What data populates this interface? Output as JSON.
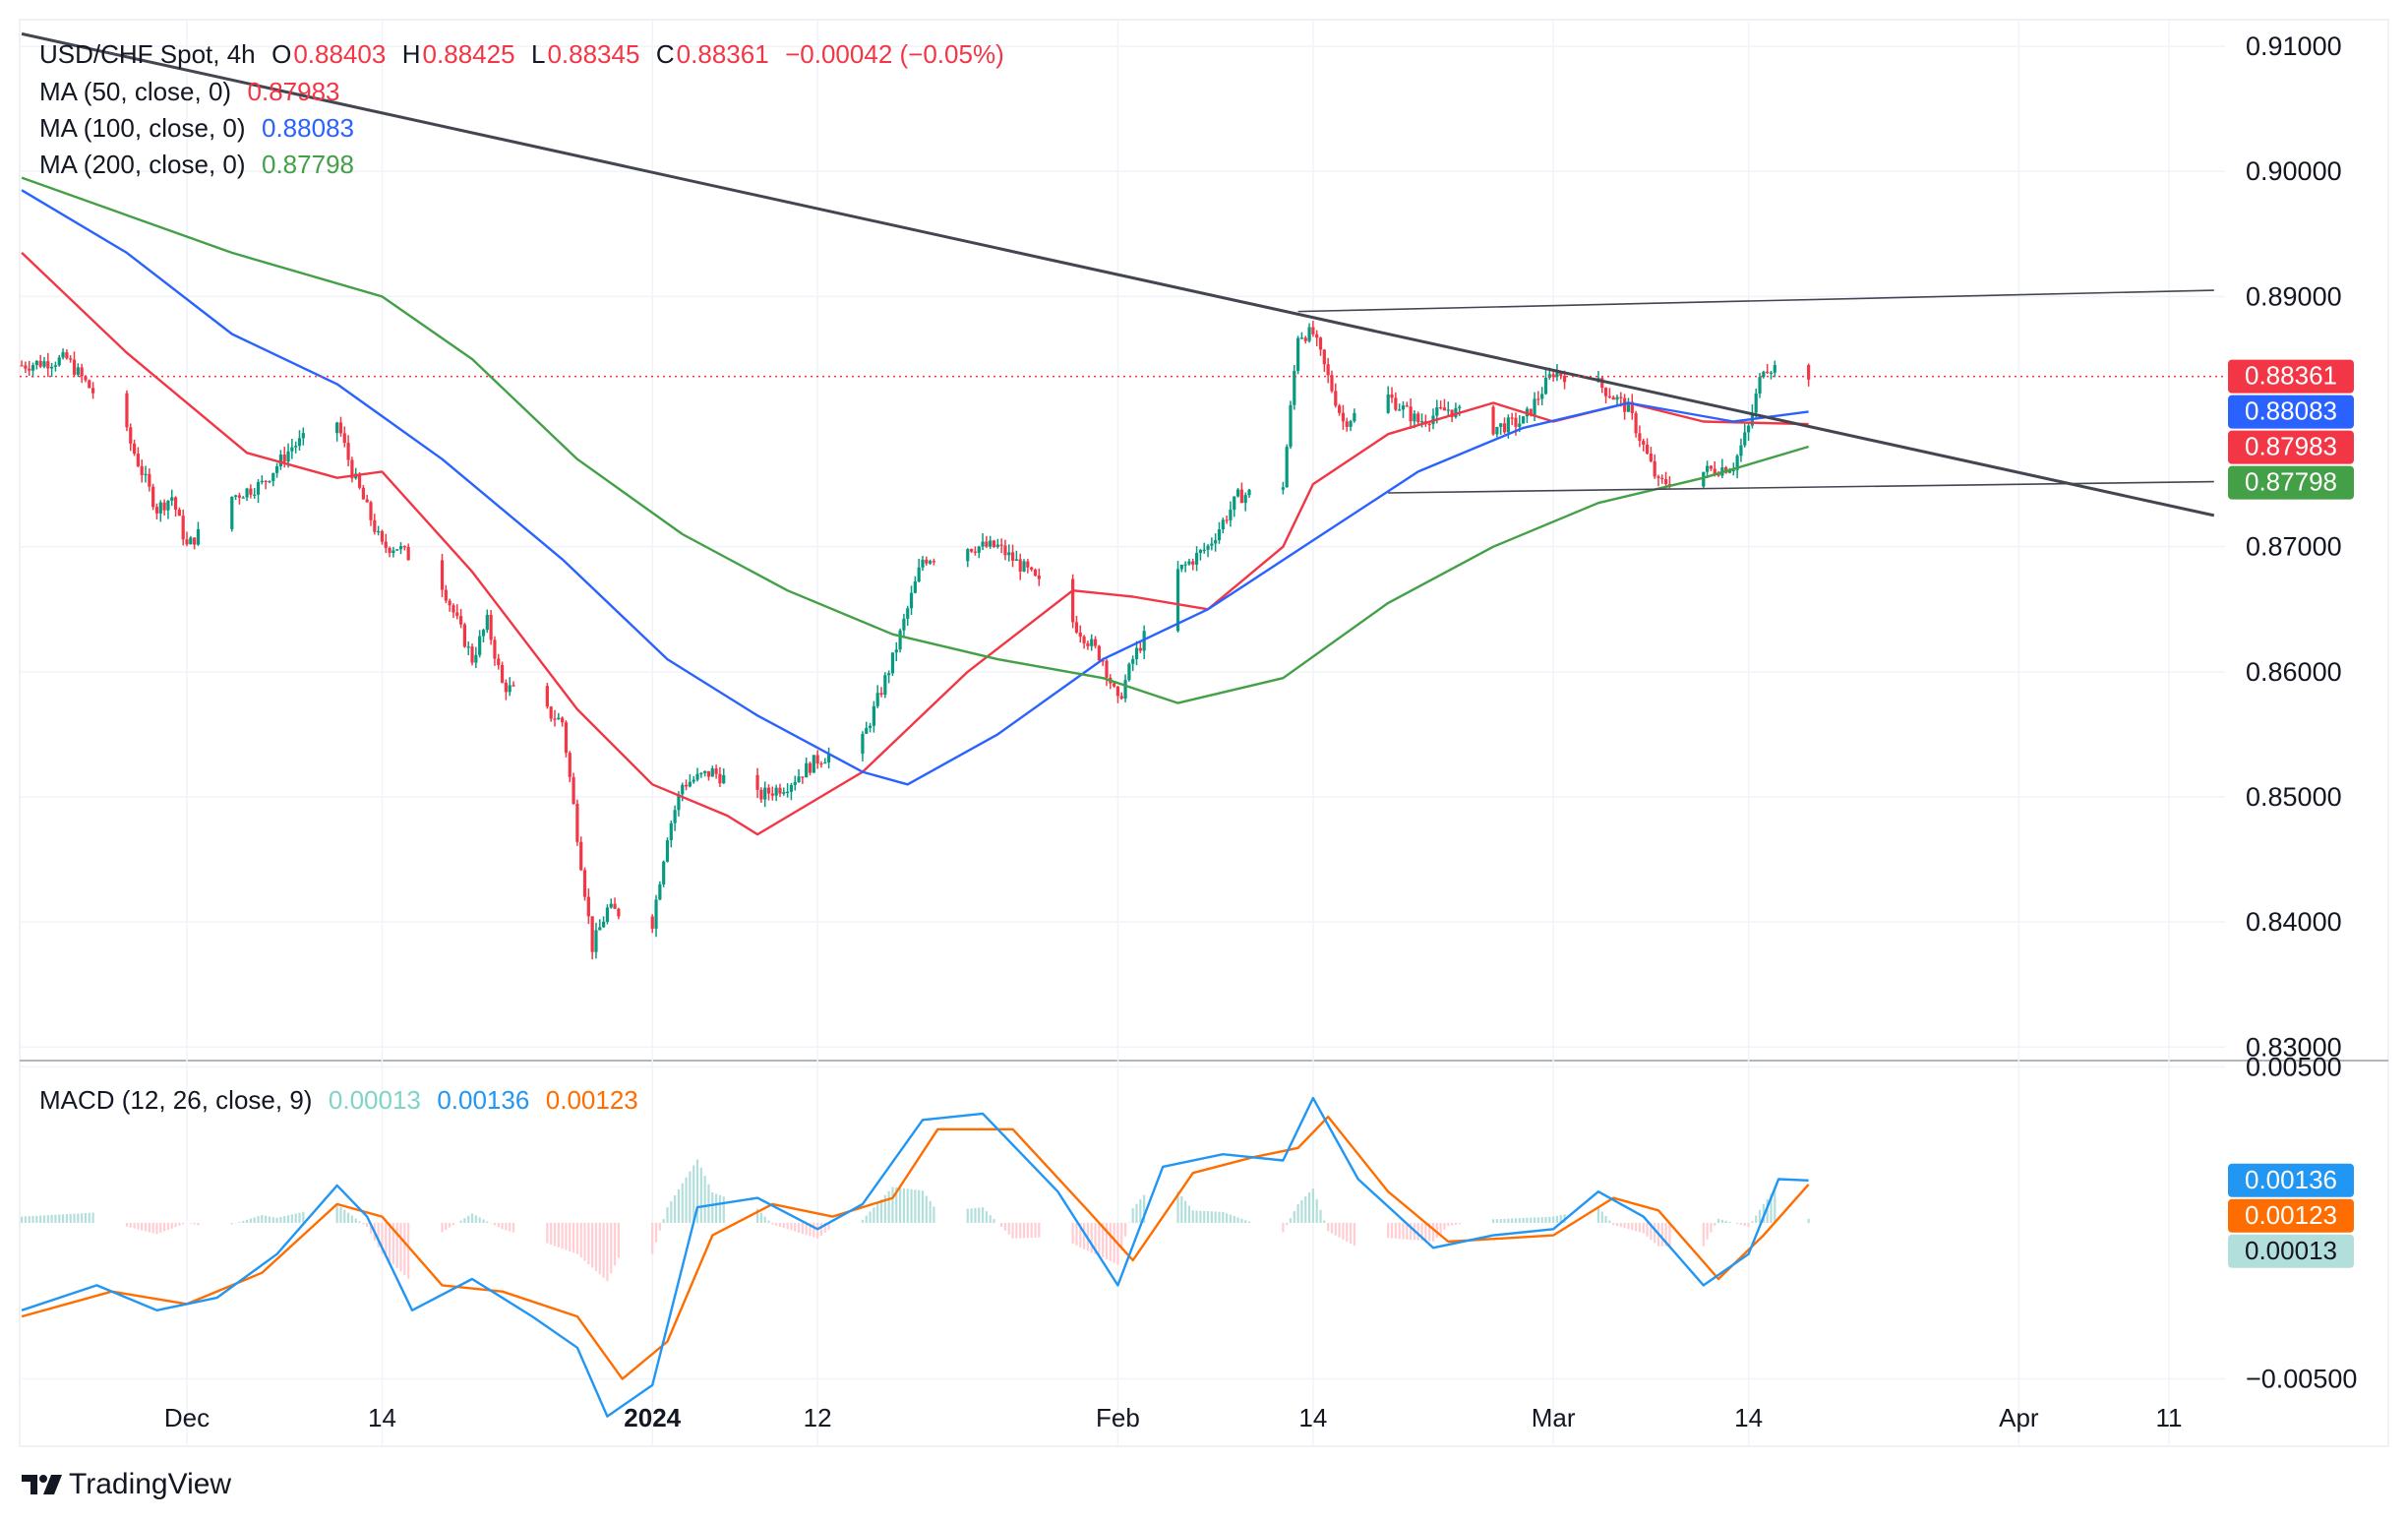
{
  "header": {
    "symbol": "USD/CHF Spot, 4h",
    "o_label": "O",
    "o_value": "0.88403",
    "h_label": "H",
    "h_value": "0.88425",
    "l_label": "L",
    "l_value": "0.88345",
    "c_label": "C",
    "c_value": "0.88361",
    "change": "−0.00042 (−0.05%)"
  },
  "indicators": [
    {
      "label": "MA (50, close, 0)",
      "value": "0.87983",
      "color": "#f23645"
    },
    {
      "label": "MA (100, close, 0)",
      "value": "0.88083",
      "color": "#2962ff"
    },
    {
      "label": "MA (200, close, 0)",
      "value": "0.87798",
      "color": "#43a047"
    }
  ],
  "macd_legend": {
    "label": "MACD (12, 26, close, 9)",
    "hist": "0.00013",
    "macd": "0.00136",
    "signal": "0.00123"
  },
  "colors": {
    "up": "#089981",
    "down": "#f23645",
    "ma50": "#f23645",
    "ma100": "#2962ff",
    "ma200": "#43a047",
    "macd": "#2196f3",
    "signal": "#ff6d00",
    "hist_pos": "#b2dfdb",
    "hist_neg": "#ffcdd2",
    "trend": "#434651"
  },
  "watermark": "TradingView",
  "chart_data": [
    {
      "type": "candlestick",
      "title": "USD/CHF Spot, 4h",
      "ylim": [
        0.829,
        0.9115
      ],
      "y_ticks": [
        "0.91000",
        "0.90000",
        "0.89000",
        "0.87000",
        "0.86000",
        "0.85000",
        "0.84000",
        "0.83000"
      ],
      "x_ticks": [
        {
          "label": "Dec",
          "date": "2023-12-01",
          "bold": false
        },
        {
          "label": "14",
          "date": "2023-12-14",
          "bold": false
        },
        {
          "label": "2024",
          "date": "2024-01-01",
          "bold": true
        },
        {
          "label": "12",
          "date": "2024-01-12",
          "bold": false
        },
        {
          "label": "Feb",
          "date": "2024-02-01",
          "bold": false
        },
        {
          "label": "14",
          "date": "2024-02-14",
          "bold": false
        },
        {
          "label": "Mar",
          "date": "2024-03-01",
          "bold": false
        },
        {
          "label": "14",
          "date": "2024-03-14",
          "bold": false
        },
        {
          "label": "Apr",
          "date": "2024-04-01",
          "bold": false
        },
        {
          "label": "11",
          "date": "2024-04-11",
          "bold": false
        }
      ],
      "price_anchors": [
        [
          "2023-11-20",
          0.8845
        ],
        [
          "2023-11-23",
          0.885
        ],
        [
          "2023-11-27",
          0.879
        ],
        [
          "2023-11-29",
          0.873
        ],
        [
          "2023-11-30",
          0.874
        ],
        [
          "2023-12-01",
          0.87
        ],
        [
          "2023-12-04",
          0.874
        ],
        [
          "2023-12-06",
          0.875
        ],
        [
          "2023-12-08",
          0.878
        ],
        [
          "2023-12-11",
          0.88
        ],
        [
          "2023-12-12",
          0.876
        ],
        [
          "2023-12-14",
          0.87
        ],
        [
          "2023-12-15",
          0.87
        ],
        [
          "2023-12-18",
          0.867
        ],
        [
          "2023-12-20",
          0.861
        ],
        [
          "2023-12-21",
          0.864
        ],
        [
          "2023-12-22",
          0.859
        ],
        [
          "2023-12-26",
          0.856
        ],
        [
          "2023-12-28",
          0.838
        ],
        [
          "2023-12-29",
          0.841
        ],
        [
          "2024-01-01",
          0.84
        ],
        [
          "2024-01-02",
          0.847
        ],
        [
          "2024-01-03",
          0.851
        ],
        [
          "2024-01-05",
          0.852
        ],
        [
          "2024-01-08",
          0.85
        ],
        [
          "2024-01-10",
          0.851
        ],
        [
          "2024-01-12",
          0.853
        ],
        [
          "2024-01-15",
          0.8545
        ],
        [
          "2024-01-17",
          0.861
        ],
        [
          "2024-01-19",
          0.869
        ],
        [
          "2024-01-22",
          0.87
        ],
        [
          "2024-01-24",
          0.87
        ],
        [
          "2024-01-26",
          0.868
        ],
        [
          "2024-01-29",
          0.864
        ],
        [
          "2024-01-31",
          0.861
        ],
        [
          "2024-02-01",
          0.8575
        ],
        [
          "2024-02-02",
          0.861
        ],
        [
          "2024-02-05",
          0.868
        ],
        [
          "2024-02-07",
          0.87
        ],
        [
          "2024-02-09",
          0.874
        ],
        [
          "2024-02-12",
          0.875
        ],
        [
          "2024-02-13",
          0.887
        ],
        [
          "2024-02-14",
          0.887
        ],
        [
          "2024-02-16",
          0.88
        ],
        [
          "2024-02-19",
          0.882
        ],
        [
          "2024-02-21",
          0.88
        ],
        [
          "2024-02-23",
          0.881
        ],
        [
          "2024-02-26",
          0.8795
        ],
        [
          "2024-02-28",
          0.88
        ],
        [
          "2024-03-01",
          0.884
        ],
        [
          "2024-03-04",
          0.883
        ],
        [
          "2024-03-06",
          0.881
        ],
        [
          "2024-03-08",
          0.875
        ],
        [
          "2024-03-11",
          0.876
        ],
        [
          "2024-03-13",
          0.8765
        ],
        [
          "2024-03-14",
          0.8795
        ],
        [
          "2024-03-15",
          0.8845
        ],
        [
          "2024-03-18",
          0.8838
        ]
      ],
      "series": [
        {
          "name": "MA (50, close, 0)",
          "last": 0.87983,
          "points": [
            [
              "2023-11-20",
              0.8935
            ],
            [
              "2023-11-27",
              0.8855
            ],
            [
              "2023-12-05",
              0.8775
            ],
            [
              "2023-12-11",
              0.8755
            ],
            [
              "2023-12-14",
              0.876
            ],
            [
              "2023-12-20",
              0.868
            ],
            [
              "2023-12-27",
              0.857
            ],
            [
              "2024-01-01",
              0.851
            ],
            [
              "2024-01-06",
              0.8485
            ],
            [
              "2024-01-08",
              0.847
            ],
            [
              "2024-01-15",
              0.852
            ],
            [
              "2024-01-22",
              0.86
            ],
            [
              "2024-01-29",
              0.8665
            ],
            [
              "2024-02-02",
              0.866
            ],
            [
              "2024-02-07",
              0.865
            ],
            [
              "2024-02-12",
              0.87
            ],
            [
              "2024-02-14",
              0.875
            ],
            [
              "2024-02-19",
              0.879
            ],
            [
              "2024-02-26",
              0.8815
            ],
            [
              "2024-03-01",
              0.88
            ],
            [
              "2024-03-06",
              0.8815
            ],
            [
              "2024-03-11",
              0.88
            ],
            [
              "2024-03-18",
              0.8798
            ]
          ]
        },
        {
          "name": "MA (100, close, 0)",
          "last": 0.88083,
          "points": [
            [
              "2023-11-20",
              0.8985
            ],
            [
              "2023-11-27",
              0.8935
            ],
            [
              "2023-12-04",
              0.887
            ],
            [
              "2023-12-11",
              0.883
            ],
            [
              "2023-12-18",
              0.877
            ],
            [
              "2023-12-26",
              0.869
            ],
            [
              "2024-01-02",
              0.861
            ],
            [
              "2024-01-08",
              0.8565
            ],
            [
              "2024-01-15",
              0.852
            ],
            [
              "2024-01-18",
              0.851
            ],
            [
              "2024-01-24",
              0.855
            ],
            [
              "2024-01-31",
              0.861
            ],
            [
              "2024-02-07",
              0.865
            ],
            [
              "2024-02-14",
              0.8705
            ],
            [
              "2024-02-21",
              0.876
            ],
            [
              "2024-02-28",
              0.8795
            ],
            [
              "2024-03-06",
              0.8815
            ],
            [
              "2024-03-13",
              0.88
            ],
            [
              "2024-03-18",
              0.8808
            ]
          ]
        },
        {
          "name": "MA (200, close, 0)",
          "last": 0.87798,
          "points": [
            [
              "2023-11-20",
              0.8995
            ],
            [
              "2023-11-27",
              0.8965
            ],
            [
              "2023-12-04",
              0.8935
            ],
            [
              "2023-12-14",
              0.89
            ],
            [
              "2023-12-20",
              0.885
            ],
            [
              "2023-12-27",
              0.877
            ],
            [
              "2024-01-03",
              0.871
            ],
            [
              "2024-01-10",
              0.8665
            ],
            [
              "2024-01-17",
              0.863
            ],
            [
              "2024-01-24",
              0.861
            ],
            [
              "2024-01-31",
              0.8595
            ],
            [
              "2024-02-05",
              0.8575
            ],
            [
              "2024-02-12",
              0.8595
            ],
            [
              "2024-02-19",
              0.8655
            ],
            [
              "2024-02-26",
              0.87
            ],
            [
              "2024-03-04",
              0.8735
            ],
            [
              "2024-03-11",
              0.8755
            ],
            [
              "2024-03-18",
              0.878
            ]
          ]
        }
      ],
      "trendlines": [
        {
          "from": [
            "2023-11-20",
            0.911
          ],
          "to": [
            "2024-04-14",
            0.8725
          ],
          "width": 3
        },
        {
          "from": [
            "2024-02-13",
            0.8888
          ],
          "to": [
            "2024-04-14",
            0.8905
          ],
          "width": 1.6
        },
        {
          "from": [
            "2024-02-19",
            0.8743
          ],
          "to": [
            "2024-04-14",
            0.8752
          ],
          "width": 1.6
        }
      ],
      "last_price": 0.88361,
      "price_tags": [
        {
          "text": "0.88361",
          "value": 0.88361,
          "color": "#f23645"
        },
        {
          "text": "0.88083",
          "value": 0.88083,
          "color": "#2962ff"
        },
        {
          "text": "0.87983",
          "value": 0.87983,
          "color": "#f23645"
        },
        {
          "text": "0.87798",
          "value": 0.87798,
          "color": "#43a047"
        }
      ]
    },
    {
      "type": "macd",
      "title": "MACD (12, 26, close, 9)",
      "ylim": [
        -0.007,
        0.0052
      ],
      "y_ticks": [
        "0.00500",
        "−0.00500"
      ],
      "macd_points": [
        [
          "2023-11-20",
          -0.0028
        ],
        [
          "2023-11-25",
          -0.002
        ],
        [
          "2023-11-29",
          -0.0028
        ],
        [
          "2023-12-03",
          -0.0024
        ],
        [
          "2023-12-07",
          -0.001
        ],
        [
          "2023-12-11",
          0.0012
        ],
        [
          "2023-12-13",
          0.0002
        ],
        [
          "2023-12-16",
          -0.0028
        ],
        [
          "2023-12-20",
          -0.0018
        ],
        [
          "2023-12-24",
          -0.003
        ],
        [
          "2023-12-27",
          -0.004
        ],
        [
          "2023-12-29",
          -0.0062
        ],
        [
          "2024-01-01",
          -0.0052
        ],
        [
          "2024-01-04",
          0.0005
        ],
        [
          "2024-01-08",
          0.0008
        ],
        [
          "2024-01-12",
          -0.0002
        ],
        [
          "2024-01-15",
          0.0006
        ],
        [
          "2024-01-19",
          0.0033
        ],
        [
          "2024-01-23",
          0.0035
        ],
        [
          "2024-01-28",
          0.001
        ],
        [
          "2024-02-01",
          -0.002
        ],
        [
          "2024-02-04",
          0.0018
        ],
        [
          "2024-02-08",
          0.0022
        ],
        [
          "2024-02-12",
          0.002
        ],
        [
          "2024-02-14",
          0.004
        ],
        [
          "2024-02-17",
          0.0014
        ],
        [
          "2024-02-22",
          -0.0008
        ],
        [
          "2024-02-26",
          -0.0004
        ],
        [
          "2024-03-01",
          -0.0002
        ],
        [
          "2024-03-04",
          0.001
        ],
        [
          "2024-03-07",
          0.0002
        ],
        [
          "2024-03-11",
          -0.002
        ],
        [
          "2024-03-14",
          -0.001
        ],
        [
          "2024-03-16",
          0.0014
        ],
        [
          "2024-03-18",
          0.00136
        ]
      ],
      "signal_points": [
        [
          "2023-11-20",
          -0.003
        ],
        [
          "2023-11-26",
          -0.0022
        ],
        [
          "2023-12-01",
          -0.0026
        ],
        [
          "2023-12-06",
          -0.0016
        ],
        [
          "2023-12-11",
          0.0006
        ],
        [
          "2023-12-14",
          0.0002
        ],
        [
          "2023-12-18",
          -0.002
        ],
        [
          "2023-12-22",
          -0.0022
        ],
        [
          "2023-12-27",
          -0.003
        ],
        [
          "2023-12-30",
          -0.005
        ],
        [
          "2024-01-02",
          -0.0038
        ],
        [
          "2024-01-05",
          -0.0004
        ],
        [
          "2024-01-09",
          0.0006
        ],
        [
          "2024-01-13",
          0.0002
        ],
        [
          "2024-01-17",
          0.0008
        ],
        [
          "2024-01-20",
          0.003
        ],
        [
          "2024-01-25",
          0.003
        ],
        [
          "2024-01-30",
          0.0004
        ],
        [
          "2024-02-02",
          -0.0012
        ],
        [
          "2024-02-06",
          0.0016
        ],
        [
          "2024-02-10",
          0.0021
        ],
        [
          "2024-02-13",
          0.0024
        ],
        [
          "2024-02-15",
          0.0034
        ],
        [
          "2024-02-19",
          0.001
        ],
        [
          "2024-02-23",
          -0.0006
        ],
        [
          "2024-03-01",
          -0.0004
        ],
        [
          "2024-03-05",
          0.0008
        ],
        [
          "2024-03-08",
          0.0004
        ],
        [
          "2024-03-12",
          -0.0018
        ],
        [
          "2024-03-15",
          -0.0004
        ],
        [
          "2024-03-18",
          0.00123
        ]
      ],
      "last_values": [
        {
          "text": "0.00136",
          "value": 0.00136,
          "color": "#2196f3",
          "fg": "#ffffff"
        },
        {
          "text": "0.00123",
          "value": 0.00123,
          "color": "#ff6d00",
          "fg": "#ffffff"
        },
        {
          "text": "0.00013",
          "value": 0.00013,
          "color": "#b2dfdb",
          "fg": "#131722"
        }
      ]
    }
  ]
}
